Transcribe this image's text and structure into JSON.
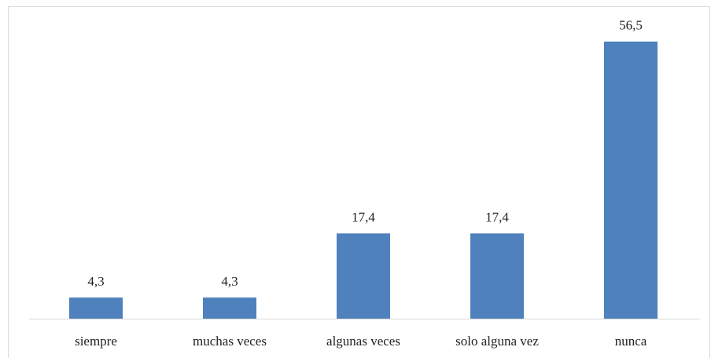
{
  "chart_data": {
    "type": "bar",
    "categories": [
      "siempre",
      "muchas veces",
      "algunas veces",
      "solo alguna vez",
      "nunca"
    ],
    "values": [
      4.3,
      4.3,
      17.4,
      17.4,
      56.5
    ],
    "value_labels": [
      "4,3",
      "4,3",
      "17,4",
      "17,4",
      "56,5"
    ],
    "color": "#4f81bd",
    "ylim": [
      0,
      60
    ]
  }
}
